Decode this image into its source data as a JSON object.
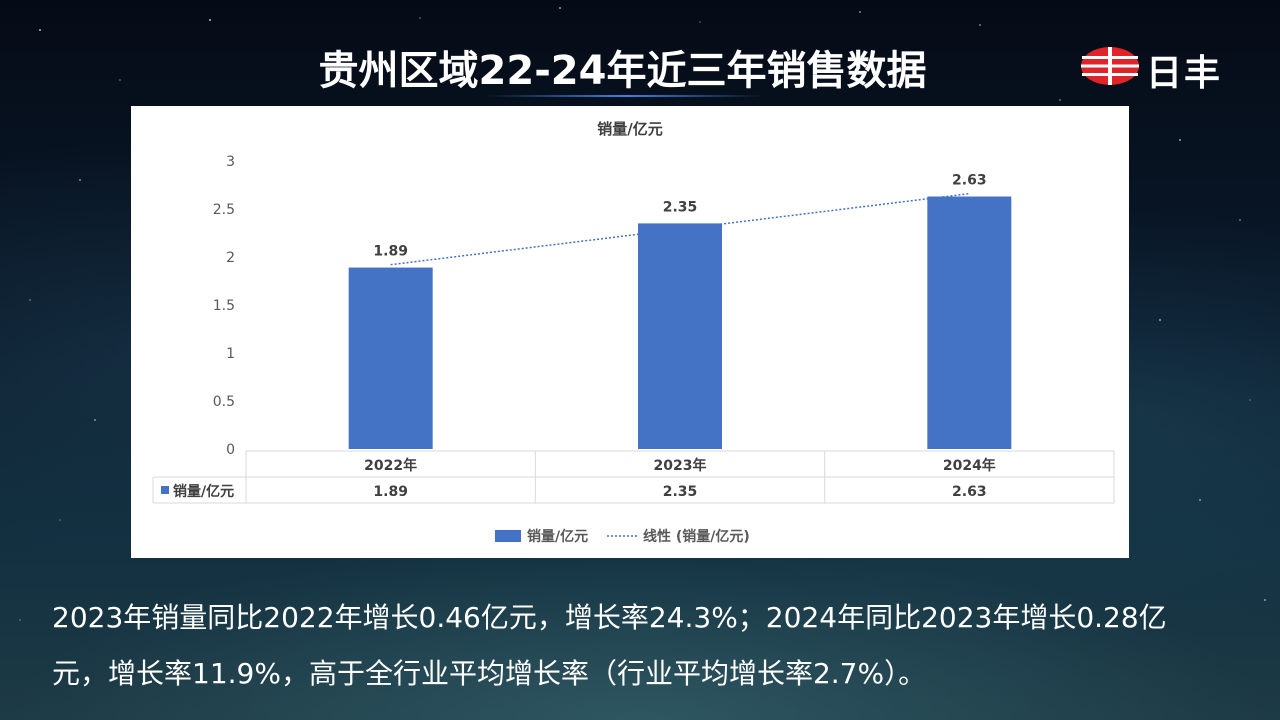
{
  "title": "贵州区域22-24年近三年销售数据",
  "logo": {
    "text": "日丰",
    "icon": "rifeng-logo-icon",
    "brand_color": "#e0242a"
  },
  "chart_data": {
    "type": "bar",
    "title": "销量/亿元",
    "categories": [
      "2022年",
      "2023年",
      "2024年"
    ],
    "series": [
      {
        "name": "销量/亿元",
        "values": [
          1.89,
          2.35,
          2.63
        ],
        "color": "#4472c4"
      }
    ],
    "trendline": {
      "name": "线性 (销量/亿元)",
      "type": "linear",
      "style": "dotted",
      "color": "#4472c4"
    },
    "data_labels": [
      "1.89",
      "2.35",
      "2.63"
    ],
    "ylim": [
      0,
      3
    ],
    "yticks": [
      "0",
      "0.5",
      "1",
      "1.5",
      "2",
      "2.5",
      "3"
    ],
    "data_table": {
      "row_label": "销量/亿元",
      "values": [
        "1.89",
        "2.35",
        "2.63"
      ]
    },
    "legend": {
      "position": "bottom",
      "entries": [
        "销量/亿元",
        "线性 (销量/亿元)"
      ]
    },
    "grid": false
  },
  "summary": {
    "line1": "2023年销量同比2022年增长0.46亿元，增长率24.3%；2024年同比2023年增长0.28亿",
    "line2": "元，增长率11.9%，高于全行业平均增长率（行业平均增长率2.7%）。"
  }
}
